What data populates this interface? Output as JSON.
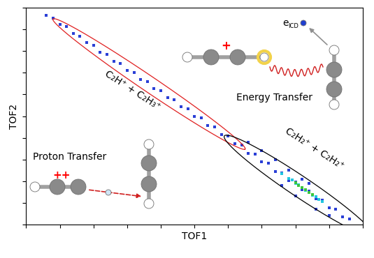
{
  "chart_data": {
    "type": "scatter",
    "x_label": "TOF1",
    "y_label": "TOF2",
    "xlim": [
      0,
      100
    ],
    "ylim": [
      0,
      100
    ],
    "xticks": [
      0,
      10,
      20,
      30,
      40,
      50,
      60,
      70,
      80,
      90,
      100
    ],
    "yticks": [
      0,
      10,
      20,
      30,
      40,
      50,
      60,
      70,
      80,
      90,
      100
    ],
    "tick_labels": false,
    "grid": false,
    "marker": "s",
    "series": [
      {
        "color": "#2a3fd6",
        "x": [
          6,
          8,
          10,
          12,
          14,
          16,
          18,
          20,
          22,
          24,
          26,
          28,
          30,
          32,
          34,
          36,
          38,
          40,
          42,
          44,
          46,
          48,
          50,
          52,
          54,
          56,
          58,
          60,
          62,
          64,
          66,
          68,
          70,
          72,
          74,
          76,
          78,
          80,
          82,
          84,
          86,
          88,
          90,
          92,
          94,
          96,
          70,
          74,
          78,
          82,
          86,
          80,
          66,
          76,
          84,
          90
        ],
        "y": [
          96.5,
          95.3,
          92.4,
          91.2,
          88.1,
          86.9,
          84.0,
          82.7,
          79.6,
          78.5,
          75.4,
          74.3,
          71.2,
          70.1,
          67.0,
          65.9,
          62.8,
          61.7,
          58.4,
          57.5,
          54.2,
          53.3,
          50.0,
          49.1,
          45.8,
          44.9,
          41.5,
          40.8,
          37.2,
          36.6,
          32.9,
          32.4,
          28.8,
          28.2,
          24.5,
          23.9,
          20.3,
          19.6,
          16.0,
          15.4,
          11.8,
          11.1,
          7.6,
          6.9,
          3.5,
          2.6,
          34,
          30,
          25,
          21,
          7,
          13,
          38,
          18,
          19,
          4
        ]
      },
      {
        "color": "#22c7e0",
        "x": [
          76,
          78,
          80,
          82,
          84,
          86,
          88,
          79,
          83,
          87,
          81,
          85
        ],
        "y": [
          23.4,
          21.2,
          19.0,
          17.1,
          14.9,
          12.8,
          10.6,
          20.5,
          15.8,
          11.5,
          18.2,
          13.6
        ]
      },
      {
        "color": "#3cc83c",
        "x": [
          80,
          81,
          82,
          83,
          84,
          85
        ],
        "y": [
          19.2,
          18.0,
          16.9,
          16.0,
          14.8,
          13.9
        ]
      }
    ],
    "annotations": {
      "upper_channel": "C₂H⁺ + C₂H₃⁺",
      "lower_channel": "C₂H₂⁺ + C₂H₂⁺",
      "energy_transfer": "Energy Transfer",
      "proton_transfer": "Proton Transfer",
      "single_charge": "+",
      "double_charge": "++",
      "electron": {
        "text": "e",
        "subscript": "ICD"
      }
    }
  }
}
